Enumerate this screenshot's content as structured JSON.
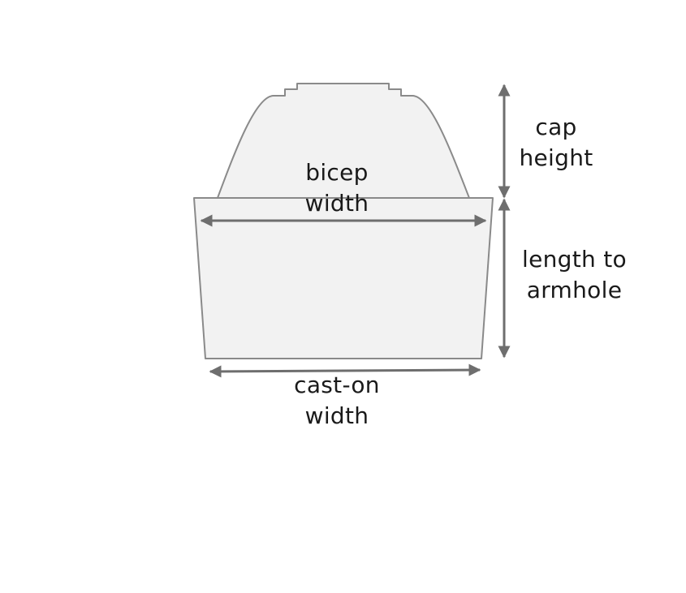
{
  "labels": {
    "bicep_width": [
      "bicep",
      "width"
    ],
    "cap_height": [
      "cap",
      "height"
    ],
    "length_to_armhole": [
      "length to",
      "armhole"
    ],
    "cast_on_width": [
      "cast-on",
      "width"
    ]
  },
  "colors": {
    "shape_fill": "#f2f2f2",
    "shape_stroke": "#8a8a8a",
    "arrow": "#6e6e6e",
    "text": "#1a1a1a"
  }
}
